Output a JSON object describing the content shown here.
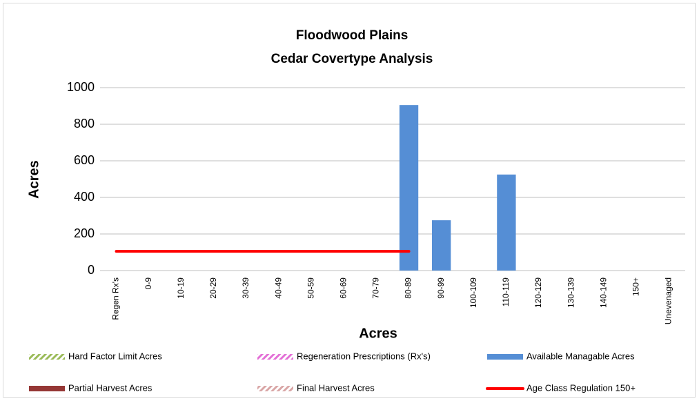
{
  "chart_data": {
    "type": "bar",
    "title": [
      "Floodwood Plains",
      "Cedar Covertype Analysis"
    ],
    "x_label": "Acres",
    "y_label": "Acres",
    "categories": [
      "Regen Rx's",
      "0-9",
      "10-19",
      "20-29",
      "30-39",
      "40-49",
      "50-59",
      "60-69",
      "70-79",
      "80-89",
      "90-99",
      "100-109",
      "110-119",
      "120-129",
      "130-139",
      "140-149",
      "150+",
      "Unevenaged"
    ],
    "ylim": [
      0,
      1000
    ],
    "yticks": [
      0,
      200,
      400,
      600,
      800,
      1000
    ],
    "grid": true,
    "series": [
      {
        "name": "Hard Factor Limit Acres",
        "type": "bar",
        "color": "#9bbb59",
        "hatched": true,
        "values": [
          null,
          null,
          null,
          null,
          null,
          null,
          null,
          null,
          null,
          null,
          null,
          null,
          null,
          null,
          null,
          null,
          null,
          null
        ]
      },
      {
        "name": "Regeneration Prescriptions (Rx's)",
        "type": "bar",
        "color": "#e36fd6",
        "hatched": true,
        "values": [
          null,
          null,
          null,
          null,
          null,
          null,
          null,
          null,
          null,
          null,
          null,
          null,
          null,
          null,
          null,
          null,
          null,
          null
        ]
      },
      {
        "name": "Available Managable Acres",
        "type": "bar",
        "color": "#558ed5",
        "hatched": false,
        "values": [
          null,
          null,
          null,
          null,
          null,
          null,
          null,
          null,
          null,
          905,
          275,
          null,
          525,
          null,
          null,
          null,
          null,
          null
        ]
      },
      {
        "name": "Partial Harvest Acres",
        "type": "bar",
        "color": "#953735",
        "hatched": false,
        "values": [
          null,
          null,
          null,
          null,
          null,
          null,
          null,
          null,
          null,
          null,
          null,
          null,
          null,
          null,
          null,
          null,
          null,
          null
        ]
      },
      {
        "name": "Final Harvest Acres",
        "type": "bar",
        "color": "#d9a6a6",
        "hatched": true,
        "values": [
          null,
          null,
          null,
          null,
          null,
          null,
          null,
          null,
          null,
          null,
          null,
          null,
          null,
          null,
          null,
          null,
          null,
          null
        ]
      },
      {
        "name": "Age Class Regulation 150+",
        "type": "line",
        "color": "#ff0000",
        "hatched": false,
        "values": [
          105,
          105,
          105,
          105,
          105,
          105,
          105,
          105,
          105,
          105,
          null,
          null,
          null,
          null,
          null,
          null,
          null,
          null
        ]
      }
    ]
  }
}
